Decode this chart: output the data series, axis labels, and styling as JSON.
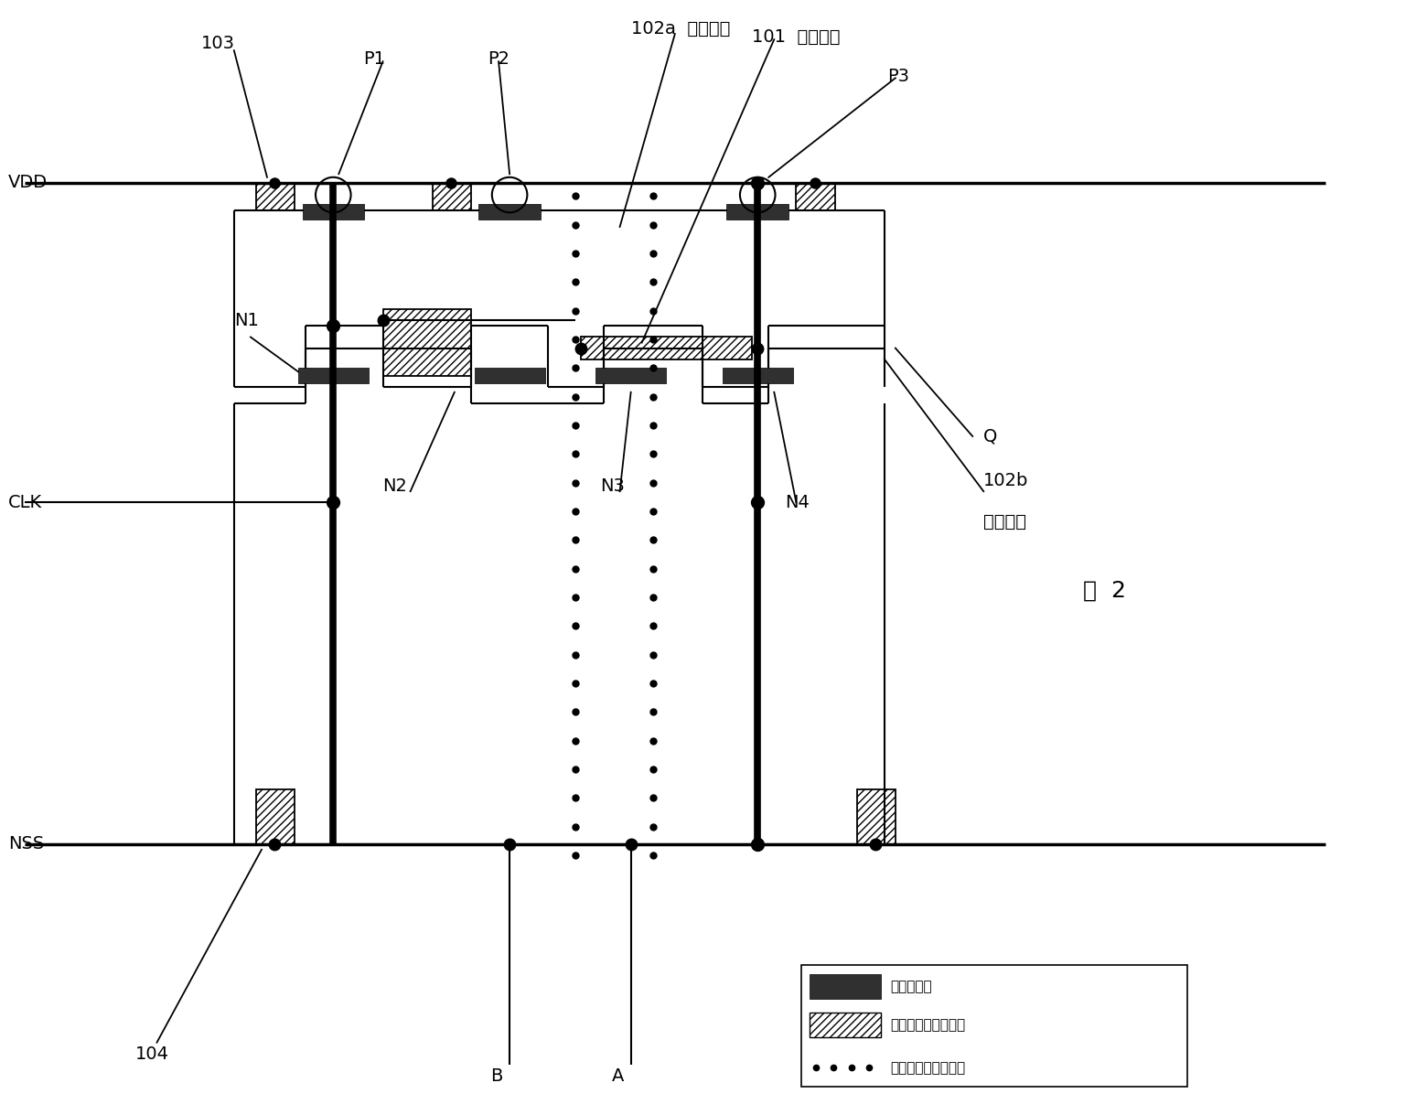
{
  "figsize": [
    15.48,
    12.19
  ],
  "dpi": 100,
  "fig_label": "图  2",
  "legend": [
    "：多晶硅层",
    "：第一层金属布线层",
    "：第二层金属布线层"
  ],
  "annotation_102a": "102a  屏蔽连线",
  "annotation_101": "101  动态节点",
  "annotation_102b_1": "102b",
  "annotation_102b_2": "屏蔽连线"
}
